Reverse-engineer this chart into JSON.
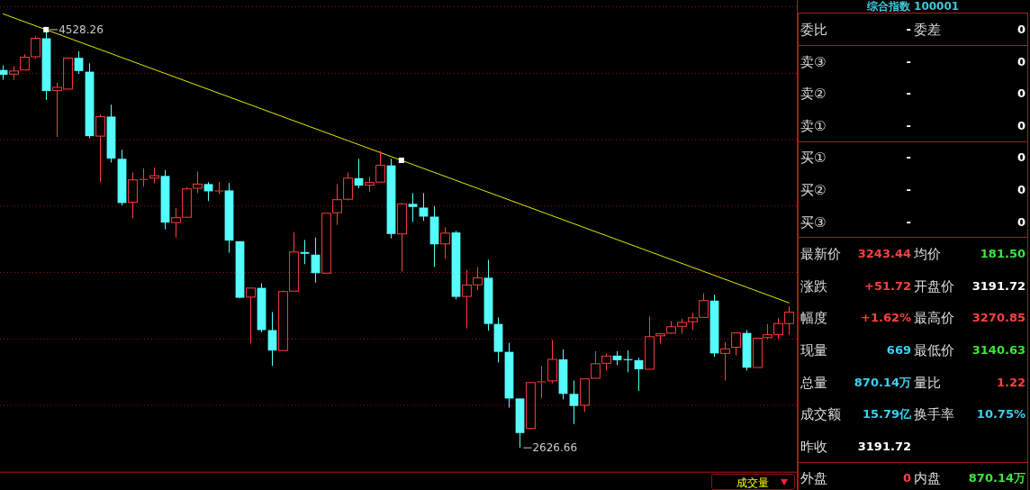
{
  "chart_data": [
    {
      "type": "candlestick",
      "categories": [
        null,
        null,
        null,
        null,
        null,
        null,
        null,
        null,
        null,
        null,
        null,
        null,
        null,
        null,
        null,
        null,
        null,
        null,
        null,
        null,
        null,
        null,
        null,
        null,
        null,
        null,
        null,
        null,
        null,
        null,
        null,
        null,
        null,
        null,
        null,
        null,
        null,
        null,
        null,
        null,
        null,
        null,
        null,
        null,
        null,
        null,
        null,
        null,
        null,
        null,
        null,
        null,
        null,
        null,
        null,
        null,
        null,
        null,
        null,
        null,
        null,
        null,
        null,
        null,
        null,
        null,
        null,
        null,
        null,
        null,
        null,
        null,
        null,
        null
      ],
      "ohlc": [
        [
          4345,
          4366,
          4300,
          4323
        ],
        [
          4326,
          4362,
          4300,
          4340
        ],
        [
          4345,
          4416,
          4345,
          4403
        ],
        [
          4405,
          4498,
          4396,
          4489
        ],
        [
          4489,
          4528.26,
          4208,
          4249
        ],
        [
          4251,
          4286,
          4040,
          4266
        ],
        [
          4258,
          4399,
          4258,
          4399
        ],
        [
          4400,
          4430,
          4327,
          4340
        ],
        [
          4337,
          4375,
          4034,
          4044
        ],
        [
          4044,
          4143,
          3833,
          4133
        ],
        [
          4133,
          4187,
          3924,
          3942
        ],
        [
          3941,
          3982,
          3729,
          3740
        ],
        [
          3743,
          3879,
          3671,
          3845
        ],
        [
          3845,
          3897,
          3815,
          3849
        ],
        [
          3853,
          3901,
          3829,
          3864
        ],
        [
          3863,
          3890,
          3620,
          3651
        ],
        [
          3651,
          3716,
          3583,
          3673
        ],
        [
          3675,
          3812,
          3675,
          3804
        ],
        [
          3807,
          3883,
          3785,
          3826
        ],
        [
          3826,
          3835,
          3749,
          3793
        ],
        [
          3793,
          3835,
          3781,
          3796
        ],
        [
          3797,
          3831,
          3514,
          3569
        ],
        [
          3566,
          3566,
          3306,
          3309
        ],
        [
          3312,
          3353,
          3101,
          3353
        ],
        [
          3354,
          3375,
          3152,
          3162
        ],
        [
          3162,
          3244,
          2999,
          3069
        ],
        [
          3069,
          3341,
          3069,
          3337
        ],
        [
          3339,
          3607,
          3339,
          3517
        ],
        [
          3517,
          3572,
          3462,
          3509
        ],
        [
          3505,
          3583,
          3378,
          3421
        ],
        [
          3421,
          3693,
          3421,
          3693
        ],
        [
          3696,
          3826,
          3640,
          3755
        ],
        [
          3757,
          3879,
          3752,
          3853
        ],
        [
          3853,
          3941,
          3807,
          3819
        ],
        [
          3821,
          3859,
          3790,
          3833
        ],
        [
          3835,
          3976,
          3835,
          3911
        ],
        [
          3911,
          3941,
          3579,
          3599
        ],
        [
          3599,
          3740,
          3428,
          3736
        ],
        [
          3736,
          3785,
          3654,
          3722
        ],
        [
          3719,
          3785,
          3659,
          3678
        ],
        [
          3678,
          3726,
          3449,
          3552
        ],
        [
          3554,
          3630,
          3487,
          3603
        ],
        [
          3606,
          3613,
          3302,
          3313
        ],
        [
          3315,
          3435,
          3170,
          3367
        ],
        [
          3368,
          3449,
          3345,
          3400
        ],
        [
          3400,
          3482,
          3159,
          3190
        ],
        [
          3190,
          3219,
          3015,
          3063
        ],
        [
          3063,
          3104,
          2810,
          2851
        ],
        [
          2851,
          2851,
          2626.66,
          2694
        ],
        [
          2715,
          2923,
          2711,
          2923
        ],
        [
          2924,
          2998,
          2851,
          2929
        ],
        [
          2931,
          3118,
          2920,
          3029
        ],
        [
          3029,
          3074,
          2847,
          2872
        ],
        [
          2872,
          2933,
          2735,
          2817
        ],
        [
          2820,
          2943,
          2790,
          2940
        ],
        [
          2943,
          3066,
          2943,
          3009
        ],
        [
          3011,
          3056,
          2978,
          3044
        ],
        [
          3046,
          3066,
          3002,
          3025
        ],
        [
          3030,
          3070,
          2970,
          3028
        ],
        [
          3025,
          3036,
          2886,
          2984
        ],
        [
          2984,
          3224,
          2984,
          3132
        ],
        [
          3136,
          3148,
          3101,
          3145
        ],
        [
          3148,
          3203,
          3145,
          3177
        ],
        [
          3179,
          3214,
          3145,
          3197
        ],
        [
          3200,
          3241,
          3162,
          3218
        ],
        [
          3220,
          3330,
          3220,
          3296
        ],
        [
          3296,
          3323,
          3040,
          3056
        ],
        [
          3056,
          3107,
          2933,
          3077
        ],
        [
          3084,
          3152,
          3047,
          3149
        ],
        [
          3149,
          3162,
          2978,
          2991
        ],
        [
          2992,
          3125,
          2992,
          3125
        ],
        [
          3128,
          3189,
          3121,
          3141
        ],
        [
          3142,
          3216,
          3121,
          3192
        ],
        [
          3191.72,
          3270.85,
          3140.63,
          3243.44
        ]
      ],
      "colors": [
        "#54fcfc",
        "#ff3c3c",
        "#ff3c3c",
        "#ff3c3c",
        "#54fcfc",
        "#ff3c3c",
        "#ff3c3c",
        "#54fcfc",
        "#54fcfc",
        "#ff3c3c",
        "#54fcfc",
        "#54fcfc",
        "#ff3c3c",
        "#ff3c3c",
        "#ff3c3c",
        "#54fcfc",
        "#ff3c3c",
        "#ff3c3c",
        "#ff3c3c",
        "#54fcfc",
        "#ff3c3c",
        "#54fcfc",
        "#54fcfc",
        "#ff3c3c",
        "#54fcfc",
        "#54fcfc",
        "#ff3c3c",
        "#ff3c3c",
        "#54fcfc",
        "#54fcfc",
        "#ff3c3c",
        "#ff3c3c",
        "#ff3c3c",
        "#54fcfc",
        "#ff3c3c",
        "#ff3c3c",
        "#54fcfc",
        "#ff3c3c",
        "#54fcfc",
        "#54fcfc",
        "#54fcfc",
        "#ff3c3c",
        "#54fcfc",
        "#ff3c3c",
        "#ff3c3c",
        "#54fcfc",
        "#54fcfc",
        "#54fcfc",
        "#54fcfc",
        "#ff3c3c",
        "#ff3c3c",
        "#ff3c3c",
        "#54fcfc",
        "#54fcfc",
        "#ff3c3c",
        "#ff3c3c",
        "#ff3c3c",
        "#54fcfc",
        "#54fcfc",
        "#54fcfc",
        "#ff3c3c",
        "#ff3c3c",
        "#ff3c3c",
        "#ff3c3c",
        "#ff3c3c",
        "#ff3c3c",
        "#54fcfc",
        "#ff3c3c",
        "#ff3c3c",
        "#54fcfc",
        "#ff3c3c",
        "#ff3c3c",
        "#ff3c3c",
        "#ff3c3c"
      ],
      "series": [
        {
          "type": "line",
          "color": "#e6e600",
          "values": [
            4600,
            null,
            null,
            null,
            4528,
            null,
            null,
            null,
            null,
            null,
            null,
            null,
            null,
            null,
            null,
            null,
            null,
            null,
            null,
            null,
            null,
            null,
            null,
            null,
            null,
            null,
            null,
            null,
            null,
            null,
            null,
            null,
            null,
            null,
            null,
            null,
            null,
            3934,
            null,
            null,
            null,
            null,
            null,
            null,
            null,
            null,
            null,
            null,
            null,
            null,
            null,
            null,
            null,
            null,
            null,
            null,
            null,
            null,
            null,
            null,
            null,
            null,
            null,
            null,
            null,
            null,
            null,
            null,
            null,
            null,
            null,
            null,
            null,
            3286
          ]
        },
        {
          "type": "scatter",
          "color": "#ffffff",
          "marker": "square",
          "values": [
            null,
            null,
            null,
            null,
            4528.26,
            null,
            null,
            null,
            null,
            null,
            null,
            null,
            null,
            null,
            null,
            null,
            null,
            null,
            null,
            null,
            null,
            null,
            null,
            null,
            null,
            null,
            null,
            null,
            null,
            null,
            null,
            null,
            null,
            null,
            null,
            null,
            null,
            3934,
            null,
            null,
            null,
            null,
            null,
            null,
            null,
            null,
            null,
            null,
            null,
            null,
            null,
            null,
            null,
            null,
            null,
            null,
            null,
            null,
            null,
            null,
            null,
            null,
            null,
            null,
            null,
            null,
            null,
            null,
            null,
            null,
            null,
            null,
            null,
            null
          ]
        }
      ],
      "ylim": [
        2518,
        4663
      ],
      "yticks": [
        {
          "value": 4632,
          "label": null
        },
        {
          "value": 4330,
          "label": null
        },
        {
          "value": 4028,
          "label": null
        },
        {
          "value": 3726,
          "label": null
        },
        {
          "value": 3424,
          "label": null
        },
        {
          "value": 3122,
          "label": null
        },
        {
          "value": 2820,
          "label": null
        }
      ],
      "annotations": [
        "4528.26",
        "2626.66",
        "成交量"
      ],
      "grid": "y"
    },
    {
      "type": "other",
      "title": "综合指数 100001",
      "categories": [
        "委比",
        "-",
        "委差",
        "0",
        "卖③",
        "-",
        null,
        "0",
        "卖②",
        "-",
        null,
        "0",
        "卖①",
        "-",
        null,
        "0",
        "买①",
        "-",
        null,
        "0",
        "买②",
        "-",
        null,
        "0",
        "买③",
        "-",
        null,
        "0",
        "最新价",
        "3243.44",
        "均价",
        "181.50",
        "涨跌",
        "+51.72",
        "开盘价",
        "3191.72",
        "幅度",
        "+1.62%",
        "最高价",
        "3270.85",
        "现量",
        "669",
        "最低价",
        "3140.63",
        "总量",
        "870.14万",
        "量比",
        "1.22",
        "成交额",
        "15.79亿",
        "换手率",
        "10.75%",
        "昨收",
        "3191.72",
        null,
        null,
        "外盘",
        "0",
        "内盘",
        "870.14万"
      ],
      "colors": [
        "#dcdcdc",
        "#ffffff",
        "#dcdcdc",
        "#ffffff",
        "#dcdcdc",
        "#ffffff",
        null,
        "#ffffff",
        "#dcdcdc",
        "#ffffff",
        null,
        "#ffffff",
        "#dcdcdc",
        "#ffffff",
        null,
        "#ffffff",
        "#dcdcdc",
        "#ffffff",
        null,
        "#ffffff",
        "#dcdcdc",
        "#ffffff",
        null,
        "#ffffff",
        "#dcdcdc",
        "#ffffff",
        null,
        "#ffffff",
        "#dcdcdc",
        "#ff4040",
        "#dcdcdc",
        "#3ce63c",
        "#dcdcdc",
        "#ff4040",
        "#dcdcdc",
        "#ffffff",
        "#dcdcdc",
        "#ff4040",
        "#dcdcdc",
        "#ff4040",
        "#dcdcdc",
        "#3cd2f0",
        "#dcdcdc",
        "#3ce63c",
        "#dcdcdc",
        "#3cd2f0",
        "#dcdcdc",
        "#ff4040",
        "#dcdcdc",
        "#3cd2f0",
        "#dcdcdc",
        "#3cd2f0",
        "#dcdcdc",
        "#ffffff",
        null,
        null,
        "#dcdcdc",
        "#ff4040",
        "#dcdcdc",
        "#3ce63c"
      ]
    }
  ]
}
